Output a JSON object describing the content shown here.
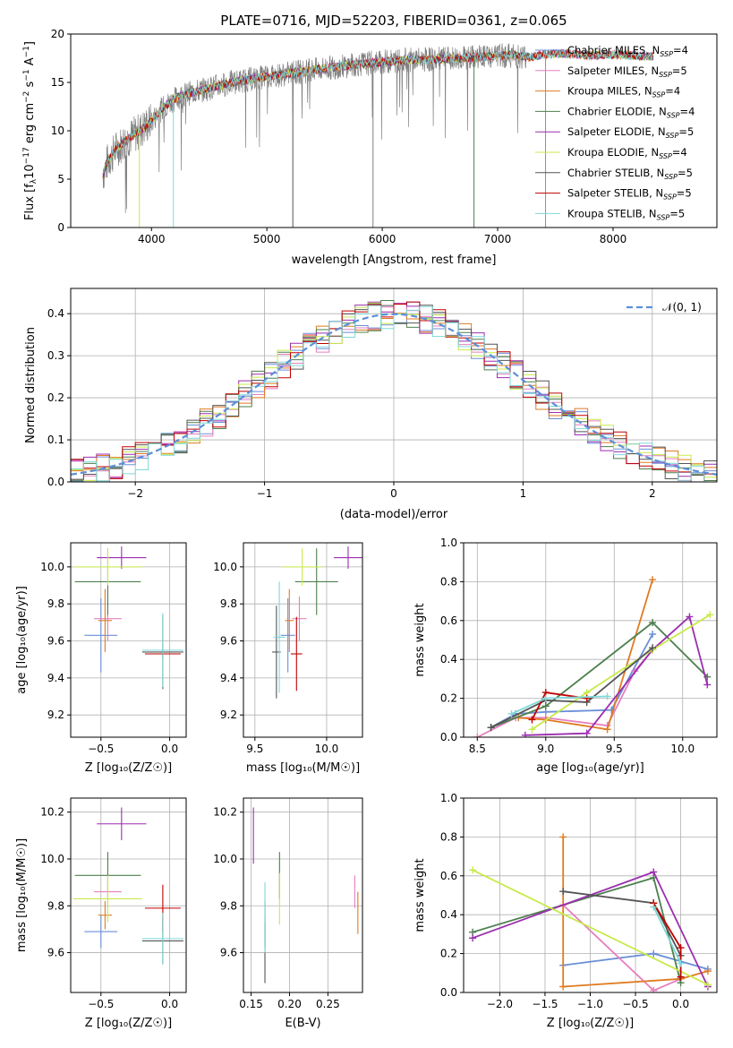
{
  "colors": {
    "chabrier_miles": "#6a8fd8",
    "salpeter_miles": "#e67fc0",
    "kroupa_miles": "#e07b20",
    "chabrier_elodie": "#4d7f4d",
    "salpeter_elodie": "#9b2fae",
    "kroupa_elodie": "#c8ea4a",
    "chabrier_stelib": "#555555",
    "salpeter_stelib": "#c00000",
    "kroupa_stelib": "#7fd8d8",
    "data": "#808080",
    "gaussian": "#5b8fd9"
  },
  "chart_data": [
    {
      "id": "spectrum",
      "type": "line",
      "title": "PLATE=0716, MJD=52203, FIBERID=0361, z=0.065",
      "xlabel": "wavelength [Angstrom, rest frame]",
      "ylabel": "Flux [f_λ 10^-17 erg cm^-2 s^-1 A^-1]",
      "xlim": [
        3300,
        8900
      ],
      "ylim": [
        0,
        20
      ],
      "xticks": [
        "4000",
        "5000",
        "6000",
        "7000",
        "8000"
      ],
      "yticks": [
        "0",
        "5",
        "10",
        "15",
        "20"
      ],
      "legend_position": "right",
      "legend": [
        {
          "label": "Chabrier MILES, N",
          "sub": "SSP",
          "tail": "=4"
        },
        {
          "label": "Salpeter MILES, N",
          "sub": "SSP",
          "tail": "=5"
        },
        {
          "label": "Kroupa MILES, N",
          "sub": "SSP",
          "tail": "=4"
        },
        {
          "label": "Chabrier ELODIE, N",
          "sub": "SSP",
          "tail": "=4"
        },
        {
          "label": "Salpeter ELODIE, N",
          "sub": "SSP",
          "tail": "=5"
        },
        {
          "label": "Kroupa ELODIE, N",
          "sub": "SSP",
          "tail": "=4"
        },
        {
          "label": "Chabrier STELIB, N",
          "sub": "SSP",
          "tail": "=5"
        },
        {
          "label": "Salpeter STELIB, N",
          "sub": "SSP",
          "tail": "=5"
        },
        {
          "label": "Kroupa STELIB, N",
          "sub": "SSP",
          "tail": "=5"
        }
      ],
      "continuum": [
        [
          3580,
          5.5
        ],
        [
          3620,
          6.8
        ],
        [
          3700,
          8.2
        ],
        [
          3800,
          9.2
        ],
        [
          3900,
          10.0
        ],
        [
          4000,
          11.0
        ],
        [
          4100,
          12.4
        ],
        [
          4200,
          13.3
        ],
        [
          4300,
          13.8
        ],
        [
          4500,
          14.4
        ],
        [
          4700,
          15.0
        ],
        [
          5000,
          15.6
        ],
        [
          5300,
          16.1
        ],
        [
          5600,
          16.6
        ],
        [
          5900,
          17.0
        ],
        [
          6200,
          17.3
        ],
        [
          6500,
          17.4
        ],
        [
          6800,
          17.6
        ],
        [
          7100,
          17.8
        ],
        [
          7300,
          17.6
        ],
        [
          7400,
          17.9
        ],
        [
          7600,
          18.0
        ],
        [
          7800,
          17.8
        ],
        [
          8000,
          17.9
        ],
        [
          8300,
          17.7
        ],
        [
          8600,
          17.5
        ]
      ],
      "data_range": [
        3580,
        7250
      ],
      "model_range": [
        3580,
        8350
      ],
      "notable_spikes": [
        3895,
        4190,
        5225,
        5920,
        6795,
        7415
      ]
    },
    {
      "id": "residuals",
      "type": "histogram",
      "xlabel": "(data-model)/error",
      "ylabel": "Normed distribution",
      "xlim": [
        -2.5,
        2.5
      ],
      "ylim": [
        0,
        0.46
      ],
      "xticks": [
        "−2",
        "−1",
        "0",
        "1",
        "2"
      ],
      "yticks": [
        "0.0",
        "0.1",
        "0.2",
        "0.3",
        "0.4"
      ],
      "grid": true,
      "bin_width": 0.1,
      "reference_label": "𝒩(0, 1)",
      "legend_position": "top-right"
    },
    {
      "id": "age_vs_Z",
      "type": "errorbar",
      "xlabel": "Z [log₁₀(Z/Z☉)]",
      "ylabel": "age  [log₁₀(age/yr)]",
      "xlim": [
        -0.72,
        0.12
      ],
      "ylim": [
        9.08,
        10.13
      ],
      "xticks": [
        [
          -0.5,
          "−0.5"
        ],
        [
          0.0,
          "0.0"
        ]
      ],
      "yticks": [
        [
          9.2,
          "9.2"
        ],
        [
          9.4,
          "9.4"
        ],
        [
          9.6,
          "9.6"
        ],
        [
          9.8,
          "9.8"
        ],
        [
          10.0,
          "10.0"
        ]
      ],
      "grid": true,
      "points": [
        {
          "model": "chabrier_miles",
          "x": -0.5,
          "xerr": 0.12,
          "y": 9.63,
          "yerr": 0.2
        },
        {
          "model": "salpeter_miles",
          "x": -0.45,
          "xerr": 0.1,
          "y": 9.72,
          "yerr": 0.12
        },
        {
          "model": "kroupa_miles",
          "x": -0.47,
          "xerr": 0.05,
          "y": 9.71,
          "yerr": 0.17
        },
        {
          "model": "chabrier_elodie",
          "x": -0.45,
          "xerr": 0.24,
          "y": 9.92,
          "yerr": 0.18
        },
        {
          "model": "salpeter_elodie",
          "x": -0.35,
          "xerr": 0.18,
          "y": 10.05,
          "yerr": 0.06
        },
        {
          "model": "kroupa_elodie",
          "x": -0.45,
          "xerr": 0.25,
          "y": 10.0,
          "yerr": 0.1
        },
        {
          "model": "chabrier_stelib",
          "x": -0.05,
          "xerr": 0.15,
          "y": 9.54,
          "yerr": 0.2
        },
        {
          "model": "salpeter_stelib",
          "x": -0.05,
          "xerr": 0.13,
          "y": 9.53,
          "yerr": 0.02
        },
        {
          "model": "kroupa_stelib",
          "x": -0.05,
          "xerr": 0.15,
          "y": 9.55,
          "yerr": 0.2
        }
      ]
    },
    {
      "id": "age_vs_mass",
      "type": "errorbar",
      "xlabel": "mass [log₁₀(M/M☉)]",
      "ylabel": "",
      "xlim": [
        9.42,
        10.25
      ],
      "ylim": [
        9.08,
        10.13
      ],
      "xticks": [
        [
          9.5,
          "9.5"
        ],
        [
          10.0,
          "10.0"
        ]
      ],
      "yticks": [
        [
          9.2,
          "9.2"
        ],
        [
          9.4,
          "9.4"
        ],
        [
          9.6,
          "9.6"
        ],
        [
          9.8,
          "9.8"
        ],
        [
          10.0,
          "10.0"
        ]
      ],
      "grid": true,
      "points": [
        {
          "model": "chabrier_miles",
          "x": 9.73,
          "xerr": 0.05,
          "y": 9.63,
          "yerr": 0.2
        },
        {
          "model": "salpeter_miles",
          "x": 9.81,
          "xerr": 0.05,
          "y": 9.72,
          "yerr": 0.12
        },
        {
          "model": "kroupa_miles",
          "x": 9.74,
          "xerr": 0.03,
          "y": 9.71,
          "yerr": 0.17
        },
        {
          "model": "chabrier_elodie",
          "x": 9.93,
          "xerr": 0.15,
          "y": 9.92,
          "yerr": 0.18
        },
        {
          "model": "salpeter_elodie",
          "x": 10.15,
          "xerr": 0.1,
          "y": 10.05,
          "yerr": 0.06
        },
        {
          "model": "kroupa_elodie",
          "x": 9.83,
          "xerr": 0.14,
          "y": 10.0,
          "yerr": 0.1
        },
        {
          "model": "chabrier_stelib",
          "x": 9.65,
          "xerr": 0.03,
          "y": 9.54,
          "yerr": 0.25
        },
        {
          "model": "salpeter_stelib",
          "x": 9.79,
          "xerr": 0.04,
          "y": 9.53,
          "yerr": 0.2
        },
        {
          "model": "kroupa_stelib",
          "x": 9.67,
          "xerr": 0.04,
          "y": 9.62,
          "yerr": 0.3
        }
      ]
    },
    {
      "id": "massweight_vs_age",
      "type": "line",
      "xlabel": "age  [log₁₀(age/yr)]",
      "ylabel": "mass weight",
      "xlim": [
        8.4,
        10.25
      ],
      "ylim": [
        0,
        1
      ],
      "xticks": [
        [
          8.5,
          "8.5"
        ],
        [
          9.0,
          "9.0"
        ],
        [
          9.5,
          "9.5"
        ],
        [
          10.0,
          "10.0"
        ]
      ],
      "yticks": [
        [
          0,
          "0.0"
        ],
        [
          0.2,
          "0.2"
        ],
        [
          0.4,
          "0.4"
        ],
        [
          0.6,
          "0.6"
        ],
        [
          0.8,
          "0.8"
        ],
        [
          1.0,
          "1.0"
        ]
      ],
      "grid": true,
      "series": [
        {
          "model": "chabrier_miles",
          "x": [
            8.6,
            8.78,
            9.0,
            9.48,
            9.78
          ],
          "y": [
            0.05,
            0.12,
            0.13,
            0.14,
            0.53
          ]
        },
        {
          "model": "salpeter_miles",
          "x": [
            8.5,
            8.78,
            9.0,
            9.45,
            9.65,
            9.78
          ],
          "y": [
            0.0,
            0.1,
            0.1,
            0.06,
            0.34,
            0.45
          ]
        },
        {
          "model": "kroupa_miles",
          "x": [
            8.8,
            9.0,
            9.45,
            9.78
          ],
          "y": [
            0.1,
            0.09,
            0.04,
            0.81
          ]
        },
        {
          "model": "chabrier_elodie",
          "x": [
            8.6,
            9.0,
            9.78,
            10.18
          ],
          "y": [
            0.05,
            0.16,
            0.59,
            0.31
          ]
        },
        {
          "model": "salpeter_elodie",
          "x": [
            8.85,
            9.3,
            9.78,
            10.05,
            10.18
          ],
          "y": [
            0.01,
            0.02,
            0.45,
            0.62,
            0.27
          ]
        },
        {
          "model": "kroupa_elodie",
          "x": [
            8.9,
            9.3,
            9.78,
            10.2
          ],
          "y": [
            0.04,
            0.23,
            0.45,
            0.63
          ]
        },
        {
          "model": "chabrier_stelib",
          "x": [
            8.6,
            9.0,
            9.3,
            9.78
          ],
          "y": [
            0.05,
            0.19,
            0.18,
            0.46
          ]
        },
        {
          "model": "salpeter_stelib",
          "x": [
            8.9,
            9.0,
            9.3
          ],
          "y": [
            0.09,
            0.23,
            0.2
          ]
        },
        {
          "model": "kroupa_stelib",
          "x": [
            8.75,
            9.0,
            9.45
          ],
          "y": [
            0.12,
            0.2,
            0.21
          ]
        }
      ]
    },
    {
      "id": "mass_vs_Z",
      "type": "errorbar",
      "xlabel": "Z [log₁₀(Z/Z☉)]",
      "ylabel": "mass [log₁₀(M/M☉)]",
      "xlim": [
        -0.72,
        0.12
      ],
      "ylim": [
        9.43,
        10.26
      ],
      "xticks": [
        [
          -0.5,
          "−0.5"
        ],
        [
          0.0,
          "0.0"
        ]
      ],
      "yticks": [
        [
          9.6,
          "9.6"
        ],
        [
          9.8,
          "9.8"
        ],
        [
          10.0,
          "10.0"
        ],
        [
          10.2,
          "10.2"
        ]
      ],
      "grid": true,
      "points": [
        {
          "model": "chabrier_miles",
          "x": -0.5,
          "xerr": 0.12,
          "y": 9.69,
          "yerr": 0.07
        },
        {
          "model": "salpeter_miles",
          "x": -0.45,
          "xerr": 0.1,
          "y": 9.86,
          "yerr": 0.07
        },
        {
          "model": "kroupa_miles",
          "x": -0.47,
          "xerr": 0.05,
          "y": 9.76,
          "yerr": 0.06
        },
        {
          "model": "chabrier_elodie",
          "x": -0.45,
          "xerr": 0.24,
          "y": 9.93,
          "yerr": 0.1
        },
        {
          "model": "salpeter_elodie",
          "x": -0.35,
          "xerr": 0.18,
          "y": 10.15,
          "yerr": 0.07
        },
        {
          "model": "kroupa_elodie",
          "x": -0.45,
          "xerr": 0.25,
          "y": 9.83,
          "yerr": 0.1
        },
        {
          "model": "chabrier_stelib",
          "x": -0.05,
          "xerr": 0.15,
          "y": 9.65,
          "yerr": 0.1
        },
        {
          "model": "salpeter_stelib",
          "x": -0.05,
          "xerr": 0.13,
          "y": 9.79,
          "yerr": 0.1
        },
        {
          "model": "kroupa_stelib",
          "x": -0.05,
          "xerr": 0.15,
          "y": 9.66,
          "yerr": 0.11
        }
      ]
    },
    {
      "id": "mass_vs_ebv",
      "type": "errorbar",
      "xlabel": "E(B-V)",
      "ylabel": "",
      "xlim": [
        0.14,
        0.295
      ],
      "ylim": [
        9.43,
        10.26
      ],
      "xticks": [
        [
          0.15,
          "0.15"
        ],
        [
          0.2,
          "0.20"
        ],
        [
          0.25,
          "0.25"
        ]
      ],
      "yticks": [
        [
          9.6,
          "9.6"
        ],
        [
          9.8,
          "9.8"
        ],
        [
          10.0,
          "10.0"
        ],
        [
          10.2,
          "10.2"
        ]
      ],
      "grid": true,
      "points": [
        {
          "model": "chabrier_miles",
          "x": 0.168,
          "xerr": 0.0,
          "y": 9.69,
          "yerr": 0.07
        },
        {
          "model": "salpeter_miles",
          "x": 0.285,
          "xerr": 0.0,
          "y": 9.86,
          "yerr": 0.07
        },
        {
          "model": "kroupa_miles",
          "x": 0.289,
          "xerr": 0.0,
          "y": 9.77,
          "yerr": 0.09
        },
        {
          "model": "chabrier_elodie",
          "x": 0.187,
          "xerr": 0.0,
          "y": 9.93,
          "yerr": 0.1
        },
        {
          "model": "salpeter_elodie",
          "x": 0.153,
          "xerr": 0.0,
          "y": 10.1,
          "yerr": 0.12
        },
        {
          "model": "kroupa_elodie",
          "x": 0.187,
          "xerr": 0.0,
          "y": 9.83,
          "yerr": 0.11
        },
        {
          "model": "chabrier_stelib",
          "x": 0.168,
          "xerr": 0.0,
          "y": 9.6,
          "yerr": 0.13
        },
        {
          "model": "salpeter_stelib",
          "x": 0.168,
          "xerr": 0.0,
          "y": 9.72,
          "yerr": 0.1
        },
        {
          "model": "kroupa_stelib",
          "x": 0.168,
          "xerr": 0.0,
          "y": 9.75,
          "yerr": 0.15
        }
      ]
    },
    {
      "id": "massweight_vs_Z",
      "type": "line",
      "xlabel": "Z [log₁₀(Z/Z☉)]",
      "ylabel": "mass weight",
      "xlim": [
        -2.4,
        0.4
      ],
      "ylim": [
        0,
        1
      ],
      "xticks": [
        [
          -2.0,
          "−2.0"
        ],
        [
          -1.5,
          "−1.5"
        ],
        [
          -1.0,
          "−1.0"
        ],
        [
          -0.5,
          "−0.5"
        ],
        [
          0.0,
          "0.0"
        ]
      ],
      "yticks": [
        [
          0,
          "0.0"
        ],
        [
          0.2,
          "0.2"
        ],
        [
          0.4,
          "0.4"
        ],
        [
          0.6,
          "0.6"
        ],
        [
          0.8,
          "0.8"
        ],
        [
          1.0,
          "1.0"
        ]
      ],
      "grid": true,
      "series": [
        {
          "model": "chabrier_miles",
          "x": [
            -1.3,
            -0.3,
            0.3
          ],
          "y": [
            0.14,
            0.2,
            0.12
          ]
        },
        {
          "model": "salpeter_miles",
          "x": [
            -1.3,
            -0.3,
            0.0
          ],
          "y": [
            0.45,
            0.01,
            0.07
          ]
        },
        {
          "model": "kroupa_miles",
          "x": [
            -1.3,
            -1.3,
            0.0,
            0.3
          ],
          "y": [
            0.8,
            0.03,
            0.07,
            0.11
          ]
        },
        {
          "model": "chabrier_elodie",
          "x": [
            -2.3,
            -0.3,
            0.0
          ],
          "y": [
            0.31,
            0.59,
            0.05
          ]
        },
        {
          "model": "salpeter_elodie",
          "x": [
            -2.3,
            -0.3,
            0.3
          ],
          "y": [
            0.28,
            0.62,
            0.03
          ]
        },
        {
          "model": "kroupa_elodie",
          "x": [
            -2.3,
            0.3
          ],
          "y": [
            0.63,
            0.04
          ]
        },
        {
          "model": "chabrier_stelib",
          "x": [
            -1.3,
            -0.3,
            0.0
          ],
          "y": [
            0.52,
            0.46,
            0.19
          ]
        },
        {
          "model": "salpeter_stelib",
          "x": [
            -0.3,
            0.0,
            0.0
          ],
          "y": [
            0.46,
            0.23,
            0.08
          ]
        },
        {
          "model": "kroupa_stelib",
          "x": [
            -0.3,
            0.0
          ],
          "y": [
            0.44,
            0.15
          ]
        }
      ]
    }
  ]
}
